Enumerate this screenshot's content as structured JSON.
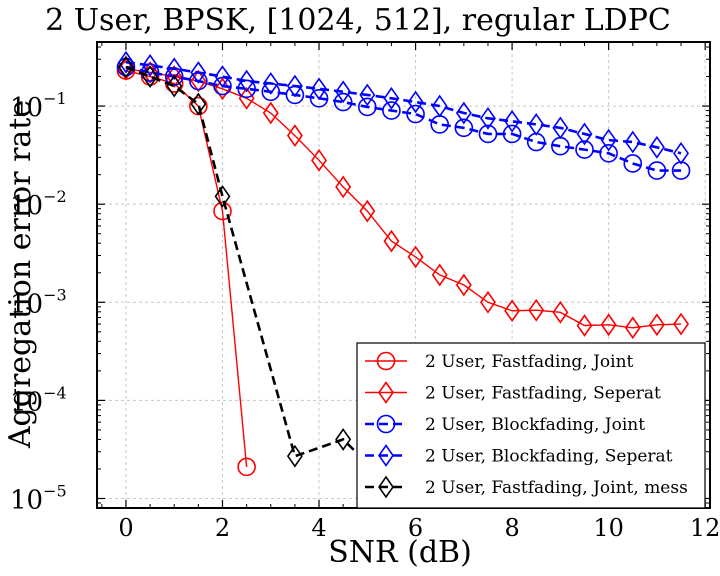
{
  "chart_data": {
    "type": "line",
    "title": "2 User, BPSK, [1024, 512], regular LDPC",
    "xlabel": "SNR (dB)",
    "ylabel": "Aggregation error rate",
    "xlim": [
      -0.6,
      12.1
    ],
    "ylim": [
      8e-06,
      0.45
    ],
    "yscale": "log",
    "grid": true,
    "legend_position": "lower-right",
    "x_ticks": [
      "0",
      "2",
      "4",
      "6",
      "8",
      "10",
      "12"
    ],
    "y_ticks": [
      {
        "base": "10",
        "exp": "−5"
      },
      {
        "base": "10",
        "exp": "−4"
      },
      {
        "base": "10",
        "exp": "−3"
      },
      {
        "base": "10",
        "exp": "−2"
      },
      {
        "base": "10",
        "exp": "−1"
      }
    ],
    "series": [
      {
        "name": "2 User, Fastfading, Joint",
        "color": "#ff0000",
        "marker": "circle",
        "dash": "solid",
        "x": [
          0,
          0.5,
          1,
          1.5,
          2,
          2.5
        ],
        "y": [
          0.23,
          0.2,
          0.17,
          0.1,
          0.0085,
          2.1e-05
        ]
      },
      {
        "name": "2 User, Fastfading, Seperat",
        "color": "#ff0000",
        "marker": "diamond",
        "dash": "solid",
        "x": [
          0,
          0.5,
          1,
          1.5,
          2,
          2.5,
          3,
          3.5,
          4,
          4.5,
          5,
          5.5,
          6,
          6.5,
          7,
          7.5,
          8,
          8.5,
          9,
          9.5,
          10,
          10.5,
          11,
          11.5
        ],
        "y": [
          0.24,
          0.22,
          0.2,
          0.18,
          0.15,
          0.12,
          0.085,
          0.05,
          0.028,
          0.015,
          0.0085,
          0.0042,
          0.0029,
          0.0019,
          0.0015,
          0.001,
          0.00082,
          0.00083,
          0.00079,
          0.00058,
          0.00059,
          0.00055,
          0.00059,
          0.0006
        ]
      },
      {
        "name": "2 User, Blockfading, Joint",
        "color": "#0000ff",
        "marker": "circle",
        "dash": "dashed",
        "x": [
          0,
          0.5,
          1,
          1.5,
          2,
          2.5,
          3,
          3.5,
          4,
          4.5,
          5,
          5.5,
          6,
          6.5,
          7,
          7.5,
          8,
          8.5,
          9,
          9.5,
          10,
          10.5,
          11,
          11.5
        ],
        "y": [
          0.25,
          0.22,
          0.2,
          0.18,
          0.16,
          0.15,
          0.14,
          0.13,
          0.12,
          0.11,
          0.098,
          0.09,
          0.083,
          0.065,
          0.06,
          0.052,
          0.052,
          0.043,
          0.039,
          0.036,
          0.033,
          0.026,
          0.022,
          0.022
        ]
      },
      {
        "name": "2 User, Blockfading, Seperat",
        "color": "#0000ff",
        "marker": "diamond",
        "dash": "dashed",
        "x": [
          0,
          0.5,
          1,
          1.5,
          2,
          2.5,
          3,
          3.5,
          4,
          4.5,
          5,
          5.5,
          6,
          6.5,
          7,
          7.5,
          8,
          8.5,
          9,
          9.5,
          10,
          10.5,
          11,
          11.5
        ],
        "y": [
          0.28,
          0.26,
          0.24,
          0.22,
          0.2,
          0.18,
          0.17,
          0.16,
          0.15,
          0.14,
          0.13,
          0.12,
          0.11,
          0.1,
          0.085,
          0.075,
          0.07,
          0.065,
          0.06,
          0.052,
          0.045,
          0.043,
          0.038,
          0.033
        ]
      },
      {
        "name": "2 User, Fastfading, Joint, mess",
        "color": "#000000",
        "marker": "diamond",
        "dash": "dashed",
        "x": [
          0,
          0.5,
          1,
          1.5,
          2,
          3.5,
          4.5,
          5.5
        ],
        "y": [
          0.25,
          0.2,
          0.16,
          0.105,
          0.012,
          2.7e-05,
          4e-05,
          1.3e-05
        ]
      }
    ]
  }
}
